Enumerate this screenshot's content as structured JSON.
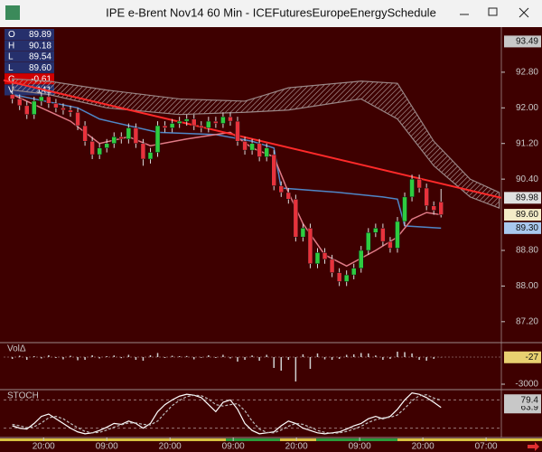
{
  "window_title": "IPE e-Brent Nov14 60 Min - ICEFuturesEuropeEnergySchedule",
  "info_panel": [
    {
      "key": "O",
      "value": "89.89"
    },
    {
      "key": "H",
      "value": "90.18"
    },
    {
      "key": "L",
      "value": "89.54"
    },
    {
      "key": "L",
      "value": "89.60"
    },
    {
      "key": "C",
      "value": "-0.61"
    },
    {
      "key": "V",
      "value": "141"
    }
  ],
  "chart_data": [
    {
      "type": "candlestick",
      "xlim": [
        -1.2,
        67.3
      ],
      "ylim": [
        86.75,
        93.65
      ],
      "yticks": [
        {
          "value": 92.8,
          "label": "92.80"
        },
        {
          "value": 92.0,
          "label": "92.00"
        },
        {
          "value": 91.2,
          "label": "91.20"
        },
        {
          "value": 90.4,
          "label": "90.40"
        },
        {
          "value": 88.8,
          "label": "88.80"
        },
        {
          "value": 88.0,
          "label": "88.00"
        },
        {
          "value": 87.2,
          "label": "87.20"
        }
      ],
      "up_color": "#2ecc40",
      "down_color": "#e8323c",
      "wick_color": "#dcdcdc",
      "candles": {
        "open": [
          92.3,
          92.2,
          92.05,
          91.85,
          92.15,
          92.25,
          92.1,
          92.0,
          91.95,
          91.9,
          91.6,
          91.25,
          90.95,
          91.1,
          91.2,
          91.35,
          91.3,
          91.55,
          91.2,
          90.85,
          91.0,
          91.6,
          91.55,
          91.65,
          91.7,
          91.75,
          91.6,
          91.55,
          91.7,
          91.65,
          91.8,
          91.7,
          91.25,
          91.05,
          91.2,
          90.9,
          90.95,
          90.25,
          90.1,
          89.95,
          89.1,
          89.3,
          88.5,
          88.75,
          88.6,
          88.3,
          88.1,
          88.25,
          88.4,
          88.8,
          89.2,
          89.3,
          89.0,
          88.85,
          89.45,
          90.0,
          90.4,
          90.2,
          89.8,
          89.89
        ],
        "high": [
          92.4,
          92.3,
          92.15,
          92.25,
          92.35,
          92.35,
          92.2,
          92.1,
          92.05,
          92.0,
          91.7,
          91.35,
          91.2,
          91.3,
          91.45,
          91.45,
          91.65,
          91.65,
          91.3,
          91.1,
          91.7,
          91.7,
          91.75,
          91.8,
          91.85,
          91.85,
          91.7,
          91.8,
          91.8,
          91.9,
          91.9,
          91.8,
          91.35,
          91.3,
          91.3,
          91.2,
          91.05,
          90.35,
          90.2,
          90.05,
          89.4,
          89.4,
          88.85,
          88.85,
          88.7,
          88.4,
          88.35,
          88.5,
          88.9,
          89.3,
          89.4,
          89.4,
          89.1,
          89.55,
          90.1,
          90.5,
          90.5,
          90.3,
          89.9,
          90.18
        ],
        "low": [
          92.1,
          91.95,
          91.75,
          91.75,
          92.05,
          92.0,
          91.9,
          91.85,
          91.8,
          91.5,
          91.15,
          90.85,
          90.85,
          91.0,
          91.1,
          91.2,
          91.2,
          91.1,
          90.7,
          90.75,
          90.9,
          91.45,
          91.45,
          91.55,
          91.6,
          91.5,
          91.45,
          91.45,
          91.55,
          91.55,
          91.6,
          91.15,
          90.95,
          90.95,
          90.8,
          90.8,
          90.15,
          90.0,
          89.85,
          89.0,
          89.0,
          88.4,
          88.4,
          88.5,
          88.2,
          88.0,
          88.0,
          88.15,
          88.3,
          88.7,
          89.1,
          88.9,
          88.75,
          88.75,
          89.35,
          89.9,
          90.1,
          89.7,
          89.6,
          89.54
        ],
        "close": [
          92.2,
          92.05,
          91.85,
          92.15,
          92.25,
          92.1,
          92.0,
          91.95,
          91.9,
          91.6,
          91.25,
          90.95,
          91.1,
          91.2,
          91.35,
          91.3,
          91.55,
          91.2,
          90.85,
          91.0,
          91.6,
          91.55,
          91.65,
          91.7,
          91.75,
          91.6,
          91.55,
          91.7,
          91.65,
          91.8,
          91.7,
          91.25,
          91.05,
          91.2,
          90.9,
          91.1,
          90.25,
          90.1,
          89.95,
          89.1,
          89.3,
          88.5,
          88.75,
          88.6,
          88.3,
          88.1,
          88.25,
          88.4,
          88.8,
          89.2,
          89.3,
          89.0,
          88.85,
          89.45,
          90.0,
          90.4,
          90.2,
          89.8,
          89.7,
          89.6
        ]
      },
      "overlays": [
        {
          "kind": "cloud",
          "color": "#9a8686",
          "x": [
            0,
            5,
            13,
            23,
            32,
            38,
            48,
            53,
            58,
            63,
            67
          ],
          "upper": [
            92.65,
            92.6,
            92.4,
            92.2,
            92.15,
            92.45,
            92.6,
            92.55,
            91.25,
            90.4,
            90.1
          ],
          "lower": [
            92.4,
            92.3,
            92.0,
            91.85,
            91.9,
            91.95,
            92.2,
            91.75,
            90.7,
            90.0,
            89.75
          ]
        },
        {
          "kind": "line",
          "color": "#4f86c6",
          "x": [
            0,
            9,
            12,
            20,
            28,
            33,
            36,
            37,
            45,
            51,
            53,
            54,
            59
          ],
          "values": [
            92.3,
            92.0,
            91.75,
            91.45,
            91.4,
            91.25,
            91.1,
            90.2,
            90.1,
            90.0,
            89.95,
            89.35,
            89.3
          ]
        },
        {
          "kind": "line",
          "color": "#e07a86",
          "x": [
            0,
            8,
            12,
            16,
            19,
            24,
            30,
            33,
            36,
            38,
            40,
            43,
            46,
            50,
            53,
            55,
            57,
            59
          ],
          "values": [
            92.3,
            91.7,
            91.2,
            91.35,
            91.15,
            91.3,
            91.45,
            91.1,
            90.9,
            90.1,
            89.4,
            88.7,
            88.45,
            88.8,
            89.1,
            89.5,
            89.65,
            89.6
          ]
        },
        {
          "kind": "trendline",
          "color": "#ff2a2a",
          "x": [
            -1.2,
            67.3
          ],
          "values": [
            92.62,
            89.98
          ]
        }
      ],
      "price_tags": [
        {
          "value": 93.49,
          "color": "#c8c8c8"
        },
        {
          "value": 89.98,
          "color": "#e0e0e0"
        },
        {
          "value": 89.6,
          "label": "89.60",
          "color": "#f4ecc8"
        },
        {
          "value": 89.3,
          "label": "89.30",
          "color": "#a9c8ee"
        }
      ]
    },
    {
      "type": "bar",
      "label": "VolΔ",
      "xlim": [
        -1.2,
        67.3
      ],
      "ylim": [
        -3500,
        1500
      ],
      "yticks": [
        -3000
      ],
      "color": "#d0d0d0",
      "tag_color": "#e8d070",
      "values": [
        -200,
        150,
        -300,
        100,
        -150,
        200,
        -100,
        -250,
        150,
        -350,
        -300,
        200,
        -150,
        100,
        180,
        -120,
        250,
        -300,
        -400,
        200,
        450,
        -100,
        150,
        100,
        120,
        -250,
        -80,
        200,
        -100,
        250,
        -150,
        -500,
        -300,
        180,
        -400,
        250,
        -1200,
        -1500,
        -300,
        -2700,
        300,
        -1300,
        400,
        -250,
        -300,
        -200,
        250,
        300,
        450,
        400,
        180,
        -300,
        -200,
        600,
        550,
        400,
        -300,
        -400,
        -200,
        -27
      ]
    },
    {
      "type": "line",
      "label": "STOCH",
      "xlim": [
        -1.2,
        67.3
      ],
      "ylim": [
        0,
        100
      ],
      "reference_lines": [
        80,
        20
      ],
      "tag_color": "#c8c8c8",
      "xticks": [
        {
          "value": 4.3,
          "label": "20:00"
        },
        {
          "value": 13,
          "label": "09:00"
        },
        {
          "value": 21.7,
          "label": "20:00"
        },
        {
          "value": 30.4,
          "label": "09:00"
        },
        {
          "value": 39.1,
          "label": "20:00"
        },
        {
          "value": 47.8,
          "label": "09:00"
        },
        {
          "value": 56.5,
          "label": "20:00"
        },
        {
          "value": 65.2,
          "label": "07:00"
        }
      ],
      "series": [
        {
          "color": "#ffffff",
          "dashed": false,
          "values": [
            25,
            20,
            18,
            30,
            45,
            50,
            40,
            30,
            20,
            12,
            8,
            10,
            15,
            22,
            30,
            28,
            35,
            30,
            20,
            30,
            55,
            70,
            80,
            88,
            92,
            90,
            85,
            70,
            55,
            75,
            80,
            60,
            30,
            15,
            8,
            10,
            12,
            25,
            35,
            30,
            20,
            15,
            10,
            8,
            10,
            12,
            18,
            25,
            30,
            40,
            45,
            40,
            45,
            60,
            80,
            95,
            92,
            85,
            75,
            63.9
          ]
        },
        {
          "color": "#bdbdbd",
          "dashed": true,
          "values": [
            28,
            25,
            21,
            23,
            31,
            42,
            45,
            40,
            30,
            21,
            13,
            10,
            11,
            16,
            22,
            27,
            31,
            31,
            28,
            27,
            35,
            52,
            68,
            79,
            87,
            90,
            89,
            82,
            70,
            67,
            70,
            72,
            57,
            35,
            18,
            11,
            10,
            16,
            24,
            30,
            28,
            22,
            15,
            11,
            9,
            10,
            13,
            18,
            24,
            32,
            38,
            42,
            43,
            48,
            62,
            78,
            89,
            91,
            84,
            79.4
          ]
        }
      ]
    }
  ]
}
